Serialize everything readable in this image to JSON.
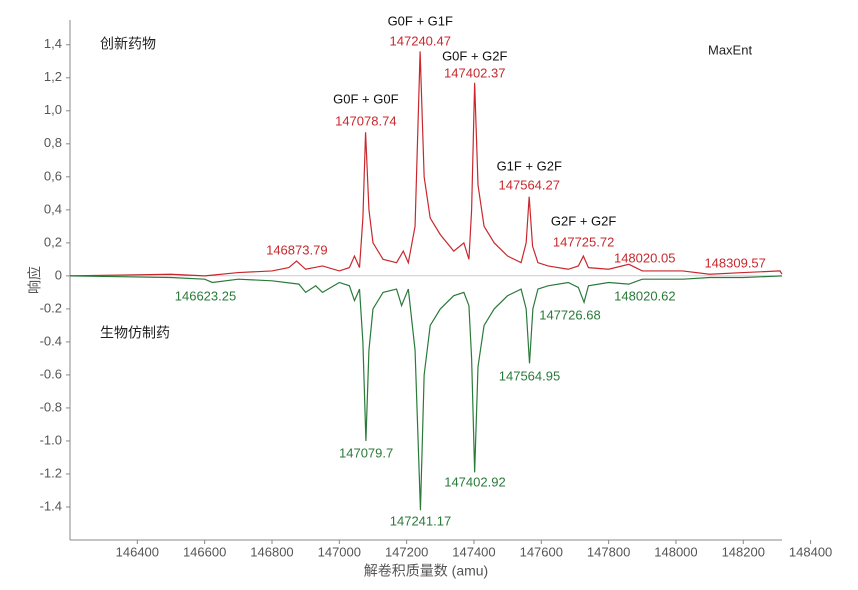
{
  "chart_data": {
    "type": "line",
    "ylabel": "响应",
    "xlabel": "解卷积质量数 (amu)",
    "annotations": [
      "创新药物",
      "生物仿制药",
      "MaxEnt"
    ],
    "xlim": [
      146200,
      148315
    ],
    "ylim": [
      -1.6,
      1.55
    ],
    "xticks": [
      146400,
      146600,
      146800,
      147000,
      147200,
      147400,
      147600,
      147800,
      148000,
      148200,
      148400
    ],
    "yticks": [
      {
        "value": 1.4,
        "label": "1,4"
      },
      {
        "value": 1.2,
        "label": "1,2"
      },
      {
        "value": 1.0,
        "label": "1,0"
      },
      {
        "value": 0.8,
        "label": "0,8"
      },
      {
        "value": 0.6,
        "label": "0,6"
      },
      {
        "value": 0.4,
        "label": "0,4"
      },
      {
        "value": 0.2,
        "label": "0,2"
      },
      0,
      -0.2,
      -0.4,
      -0.6,
      -0.8,
      {
        "value": -1.0,
        "label": "-1.0"
      },
      -1.2,
      -1.4
    ],
    "grid": false,
    "series": [
      {
        "color": "#c8282d",
        "x": [
          146200,
          146500,
          146600,
          146700,
          146800,
          146850,
          146873,
          146900,
          146950,
          147000,
          147030,
          147045,
          147060,
          147070,
          147078,
          147088,
          147100,
          147130,
          147170,
          147190,
          147205,
          147225,
          147240,
          147252,
          147270,
          147300,
          147340,
          147370,
          147385,
          147393,
          147402,
          147412,
          147430,
          147460,
          147500,
          147540,
          147555,
          147564,
          147574,
          147590,
          147620,
          147680,
          147710,
          147725,
          147740,
          147800,
          147860,
          147900,
          148020,
          148100,
          148200,
          148309,
          148315
        ],
        "values": [
          0,
          0.01,
          0,
          0.02,
          0.03,
          0.05,
          0.09,
          0.04,
          0.06,
          0.03,
          0.05,
          0.12,
          0.05,
          0.35,
          0.87,
          0.4,
          0.2,
          0.1,
          0.08,
          0.15,
          0.08,
          0.3,
          1.36,
          0.6,
          0.35,
          0.25,
          0.15,
          0.2,
          0.1,
          0.4,
          1.17,
          0.55,
          0.3,
          0.2,
          0.12,
          0.08,
          0.2,
          0.48,
          0.18,
          0.08,
          0.06,
          0.04,
          0.06,
          0.12,
          0.05,
          0.04,
          0.07,
          0.03,
          0.03,
          0.01,
          0.02,
          0.03,
          0.01
        ],
        "peak_labels": [
          {
            "mass": 146873.79
          },
          {
            "glycan": "G0F + G0F",
            "mass": 147078.74
          },
          {
            "glycan": "G0F + G1F",
            "mass": 147240.47
          },
          {
            "glycan": "G0F + G2F",
            "mass": 147402.37
          },
          {
            "glycan": "G1F + G2F",
            "mass": 147564.27
          },
          {
            "glycan": "G2F + G2F",
            "mass": 147725.72
          },
          {
            "mass": 148020.05
          },
          {
            "mass": 148309.57
          }
        ]
      },
      {
        "color": "#2a7a3a",
        "x": [
          146200,
          146500,
          146600,
          146623,
          146700,
          146800,
          146880,
          146900,
          146930,
          146950,
          147000,
          147030,
          147045,
          147060,
          147070,
          147079,
          147088,
          147100,
          147130,
          147170,
          147185,
          147205,
          147225,
          147241,
          147252,
          147270,
          147300,
          147340,
          147370,
          147385,
          147393,
          147402,
          147412,
          147430,
          147460,
          147500,
          147540,
          147555,
          147565,
          147575,
          147590,
          147620,
          147680,
          147710,
          147727,
          147740,
          147800,
          147860,
          147900,
          148021,
          148100,
          148200,
          148315
        ],
        "values": [
          0,
          -0.01,
          -0.02,
          -0.04,
          -0.02,
          -0.03,
          -0.05,
          -0.1,
          -0.06,
          -0.1,
          -0.04,
          -0.06,
          -0.15,
          -0.08,
          -0.4,
          -1.0,
          -0.45,
          -0.2,
          -0.1,
          -0.08,
          -0.18,
          -0.08,
          -0.45,
          -1.42,
          -0.6,
          -0.3,
          -0.2,
          -0.12,
          -0.1,
          -0.18,
          -0.5,
          -1.19,
          -0.55,
          -0.3,
          -0.2,
          -0.12,
          -0.08,
          -0.2,
          -0.53,
          -0.2,
          -0.08,
          -0.06,
          -0.04,
          -0.07,
          -0.16,
          -0.06,
          -0.04,
          -0.05,
          -0.02,
          -0.02,
          -0.01,
          -0.01,
          0
        ],
        "peak_labels": [
          {
            "mass": 146623.25
          },
          {
            "mass": 147079.7
          },
          {
            "mass": 147241.17
          },
          {
            "mass": 147402.92
          },
          {
            "mass": 147564.95
          },
          {
            "mass": 147726.68
          },
          {
            "mass": 148020.62
          }
        ]
      }
    ]
  }
}
